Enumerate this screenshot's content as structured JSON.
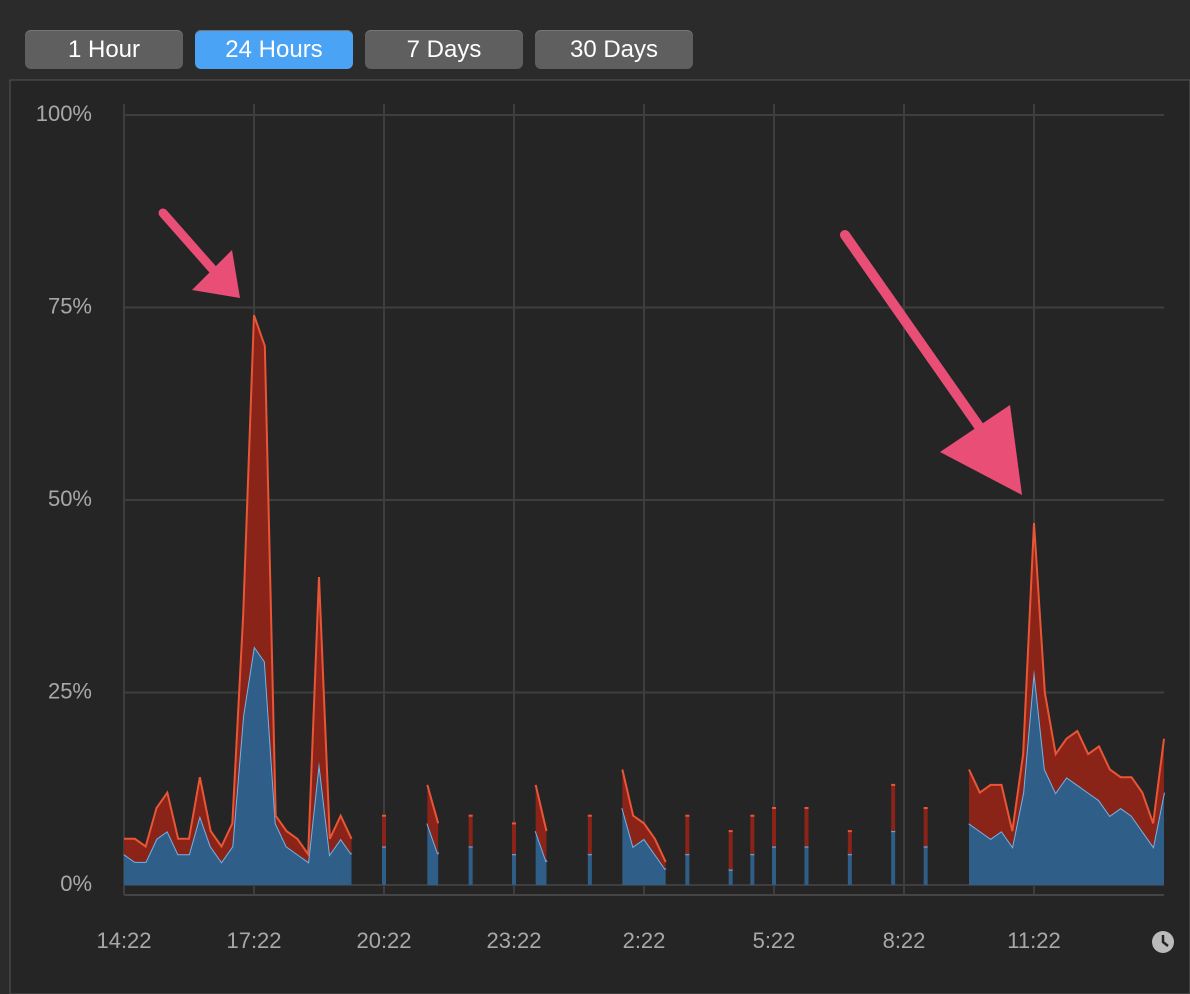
{
  "buttons": [
    "1 Hour",
    "24 Hours",
    "7 Days",
    "30 Days"
  ],
  "selected_button": 1,
  "chart_data": {
    "type": "stacked-area",
    "categories": [
      "14:22",
      null,
      null,
      null,
      null,
      null,
      null,
      null,
      null,
      null,
      null,
      null,
      "17:22",
      null,
      null,
      null,
      null,
      null,
      null,
      null,
      null,
      null,
      null,
      null,
      "20:22",
      null,
      null,
      null,
      null,
      null,
      null,
      null,
      null,
      null,
      null,
      null,
      "23:22",
      null,
      null,
      null,
      null,
      null,
      null,
      null,
      null,
      null,
      null,
      null,
      "2:22",
      null,
      null,
      null,
      null,
      null,
      null,
      null,
      null,
      null,
      null,
      null,
      "5:22",
      null,
      null,
      null,
      null,
      null,
      null,
      null,
      null,
      null,
      null,
      null,
      "8:22",
      null,
      null,
      null,
      null,
      null,
      null,
      null,
      null,
      null,
      null,
      null,
      "11:22",
      null,
      null,
      null,
      null,
      null,
      null,
      null,
      null,
      null,
      null,
      null,
      null
    ],
    "series": [
      {
        "color": "#2f5f88",
        "line_color": "#6fb4ea",
        "values": [
          4,
          3,
          3,
          6,
          7,
          4,
          4,
          9,
          5,
          3,
          5,
          22,
          31,
          29,
          8,
          5,
          4,
          3,
          16,
          4,
          6,
          4,
          null,
          null,
          5,
          null,
          null,
          null,
          8,
          4,
          null,
          null,
          5,
          null,
          null,
          null,
          4,
          null,
          7,
          3,
          null,
          null,
          null,
          4,
          null,
          null,
          10,
          5,
          6,
          4,
          2,
          null,
          4,
          null,
          null,
          null,
          2,
          null,
          4,
          null,
          5,
          null,
          null,
          5,
          null,
          null,
          null,
          4,
          null,
          null,
          null,
          7,
          null,
          null,
          5,
          null,
          null,
          null,
          8,
          7,
          6,
          7,
          5,
          12,
          28,
          15,
          12,
          14,
          13,
          12,
          11,
          9,
          10,
          9,
          7,
          5,
          12
        ]
      },
      {
        "color": "#8a2419",
        "line_color": "#ea5536",
        "values": [
          2,
          3,
          2,
          4,
          5,
          2,
          2,
          5,
          2,
          2,
          3,
          13,
          43,
          41,
          1,
          2,
          2,
          1,
          24,
          2,
          3,
          2,
          null,
          null,
          4,
          null,
          null,
          null,
          5,
          4,
          null,
          null,
          4,
          null,
          null,
          null,
          4,
          null,
          6,
          4,
          null,
          null,
          null,
          5,
          null,
          null,
          5,
          4,
          2,
          2,
          1,
          null,
          5,
          null,
          null,
          null,
          5,
          null,
          5,
          null,
          5,
          null,
          null,
          5,
          null,
          null,
          null,
          3,
          null,
          null,
          null,
          6,
          null,
          null,
          5,
          null,
          null,
          null,
          7,
          5,
          7,
          6,
          2,
          5,
          19,
          10,
          5,
          5,
          7,
          5,
          7,
          6,
          4,
          5,
          5,
          3,
          7
        ]
      }
    ],
    "ylim": [
      0,
      100
    ],
    "yticks": [
      {
        "value": 0,
        "label": "0%"
      },
      {
        "value": 25,
        "label": "25%"
      },
      {
        "value": 50,
        "label": "50%"
      },
      {
        "value": 75,
        "label": "75%"
      },
      {
        "value": 100,
        "label": "100%"
      }
    ],
    "grid": true
  }
}
